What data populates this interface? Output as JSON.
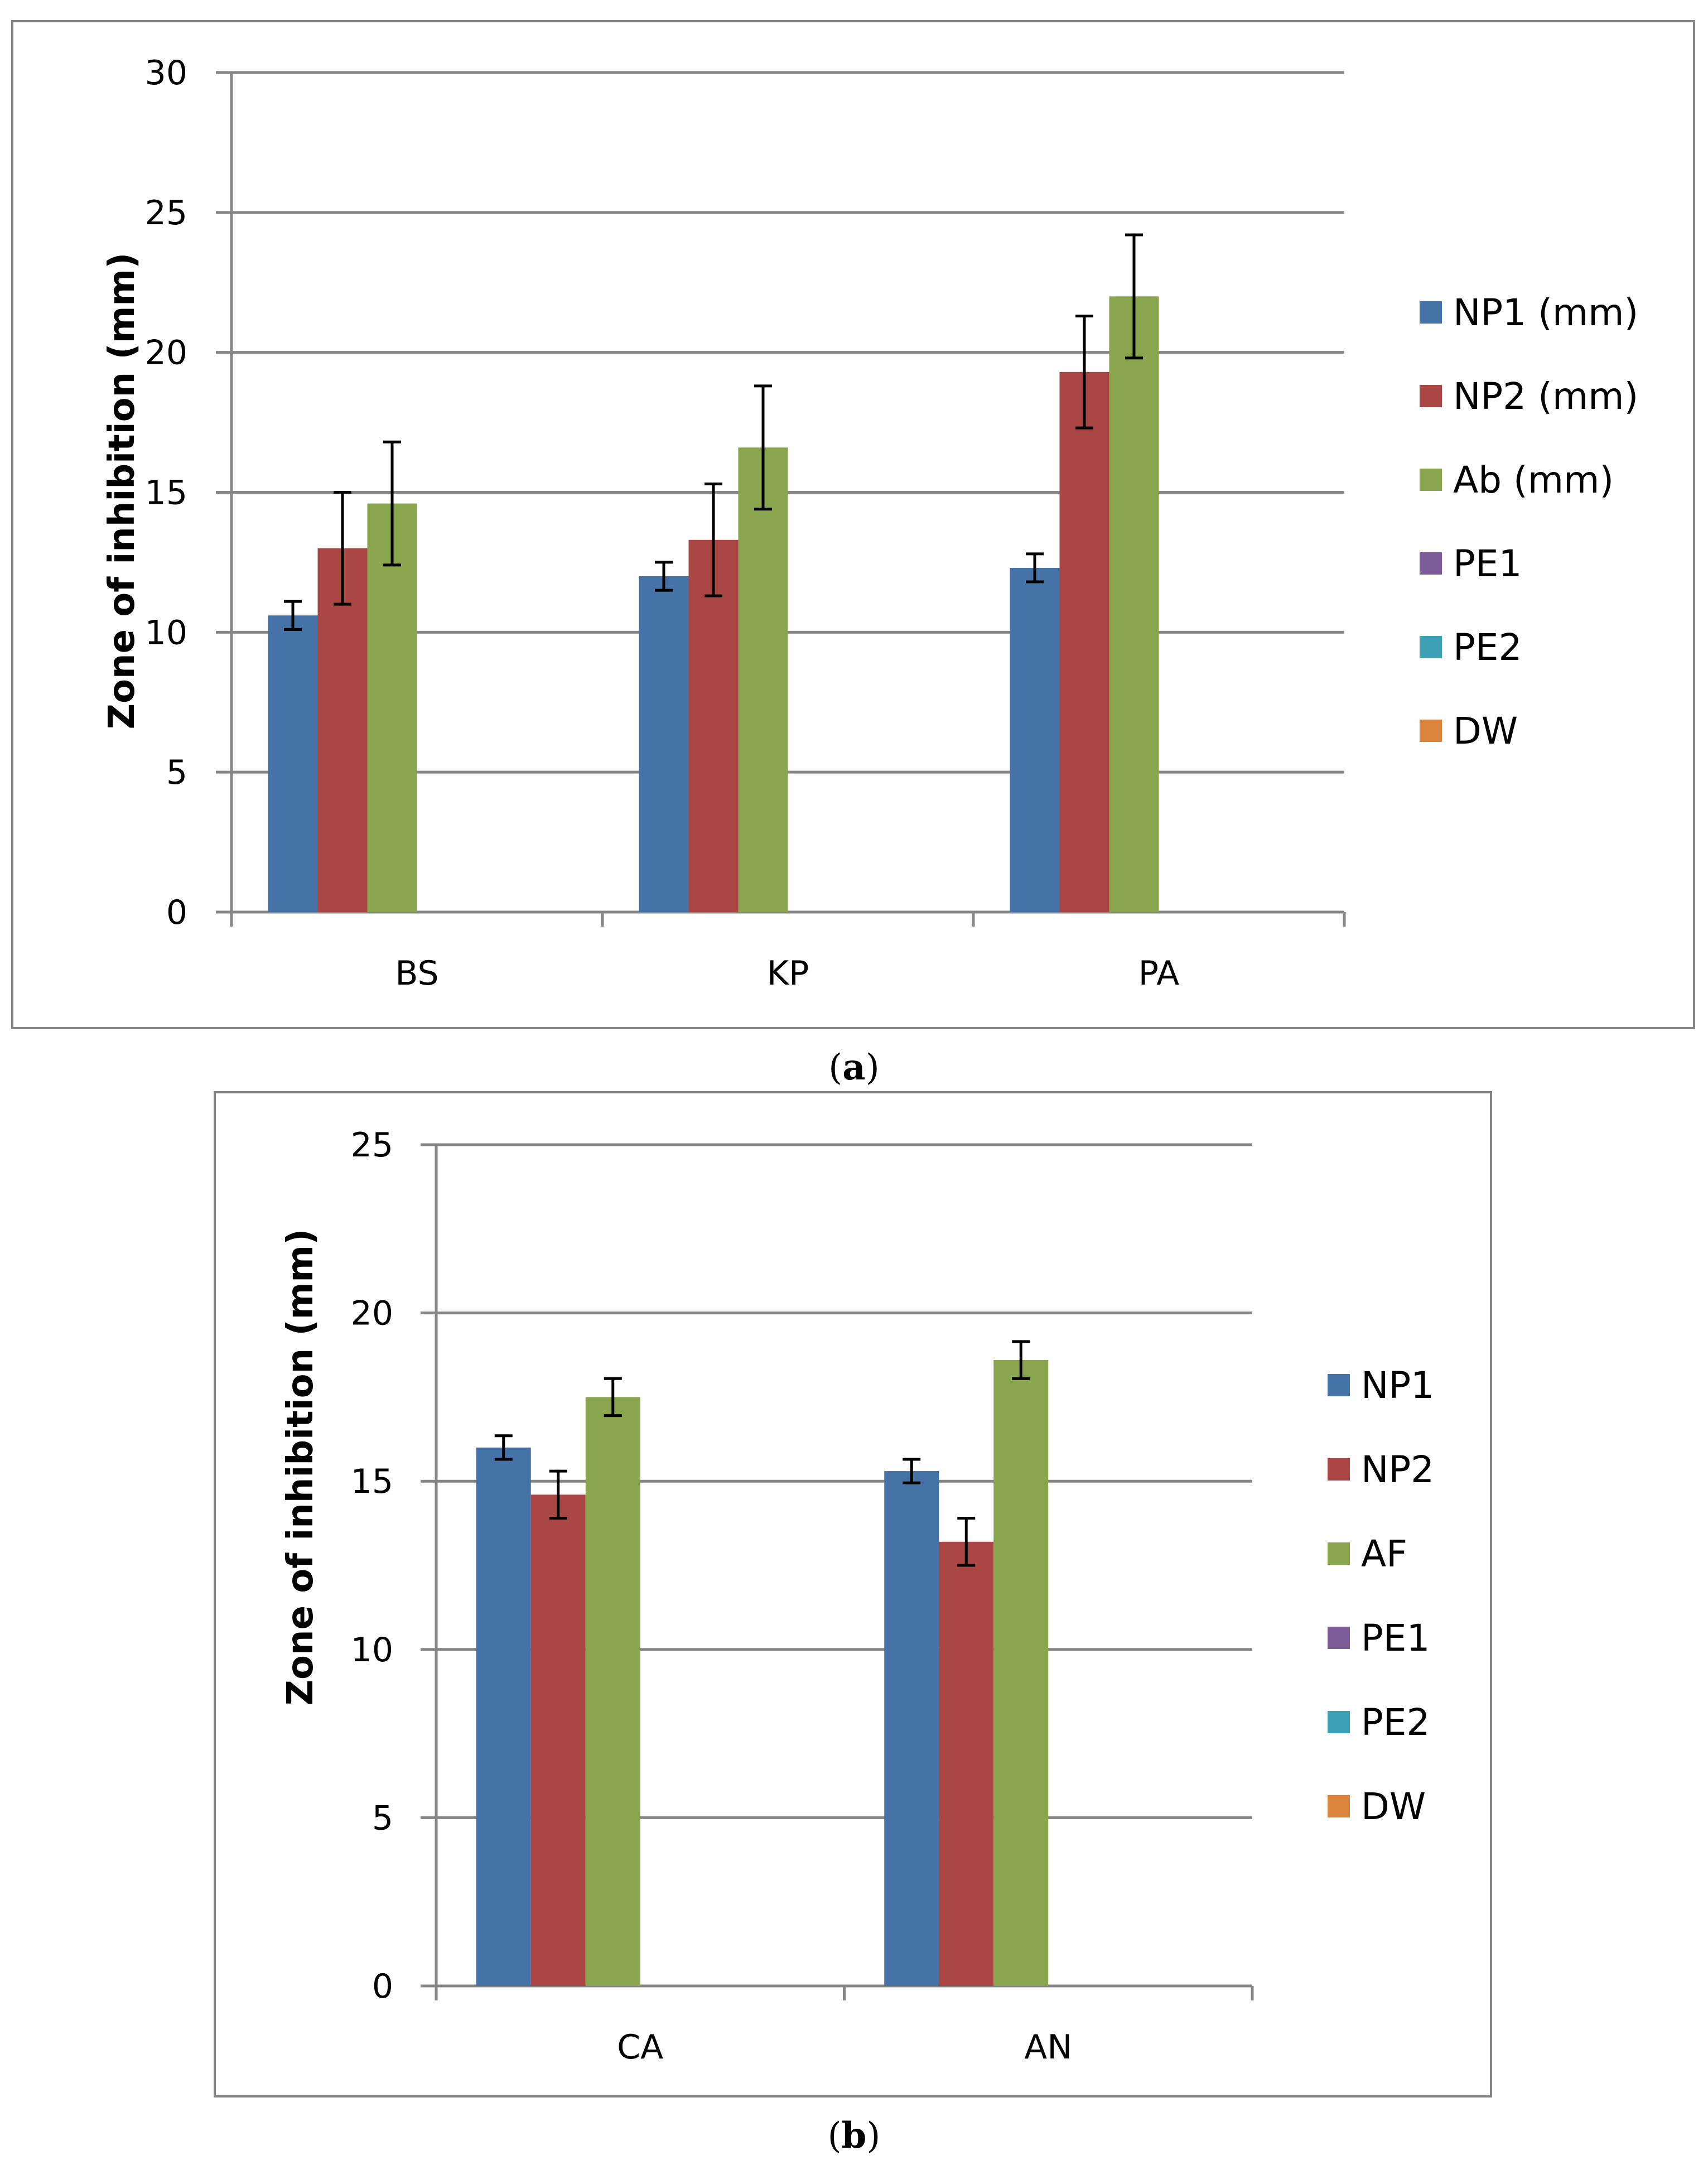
{
  "colors": {
    "NP1": "#4572A7",
    "NP2": "#AA4643",
    "Ab": "#89A54E",
    "PE1": "#7E5C9A",
    "PE2": "#3DA0B5",
    "DW": "#DB843D",
    "grid": "#868686",
    "frame": "#868686",
    "text": "#000000"
  },
  "chart_data": [
    {
      "type": "bar",
      "panel": "a",
      "caption_label": "a",
      "title": "",
      "xlabel": "",
      "ylabel": "Zone of inhibition (mm)",
      "ylim": [
        0,
        30
      ],
      "yticks": [
        0,
        5,
        10,
        15,
        20,
        25,
        30
      ],
      "grid": true,
      "legend_position": "right",
      "categories": [
        "BS",
        "KP",
        "PA"
      ],
      "series": [
        {
          "key": "NP1",
          "name": "NP1 (mm)",
          "values": [
            10.6,
            12.0,
            12.3
          ],
          "errors": [
            0.5,
            0.5,
            0.5
          ]
        },
        {
          "key": "NP2",
          "name": "NP2 (mm)",
          "values": [
            13.0,
            13.3,
            19.3
          ],
          "errors": [
            2.0,
            2.0,
            2.0
          ]
        },
        {
          "key": "Ab",
          "name": "Ab (mm)",
          "values": [
            14.6,
            16.6,
            22.0
          ],
          "errors": [
            2.2,
            2.2,
            2.2
          ]
        },
        {
          "key": "PE1",
          "name": "PE1",
          "values": [
            0,
            0,
            0
          ],
          "errors": null
        },
        {
          "key": "PE2",
          "name": "PE2",
          "values": [
            0,
            0,
            0
          ],
          "errors": null
        },
        {
          "key": "DW",
          "name": "DW",
          "values": [
            0,
            0,
            0
          ],
          "errors": null
        }
      ]
    },
    {
      "type": "bar",
      "panel": "b",
      "caption_label": "b",
      "title": "",
      "xlabel": "",
      "ylabel": "Zone of inhibition (mm)",
      "ylim": [
        0,
        25
      ],
      "yticks": [
        0,
        5,
        10,
        15,
        20,
        25
      ],
      "grid": true,
      "legend_position": "right",
      "categories": [
        "CA",
        "AN"
      ],
      "series": [
        {
          "key": "NP1",
          "name": "NP1",
          "values": [
            16.0,
            15.3
          ],
          "errors": [
            0.35,
            0.35
          ]
        },
        {
          "key": "NP2",
          "name": "NP2",
          "values": [
            14.6,
            13.2
          ],
          "errors": [
            0.7,
            0.7
          ]
        },
        {
          "key": "Ab",
          "name": "AF",
          "values": [
            17.5,
            18.6
          ],
          "errors": [
            0.55,
            0.55
          ]
        },
        {
          "key": "PE1",
          "name": "PE1",
          "values": [
            0,
            0
          ],
          "errors": null
        },
        {
          "key": "PE2",
          "name": "PE2",
          "values": [
            0,
            0
          ],
          "errors": null
        },
        {
          "key": "DW",
          "name": "DW",
          "values": [
            0,
            0
          ],
          "errors": null
        }
      ]
    }
  ]
}
